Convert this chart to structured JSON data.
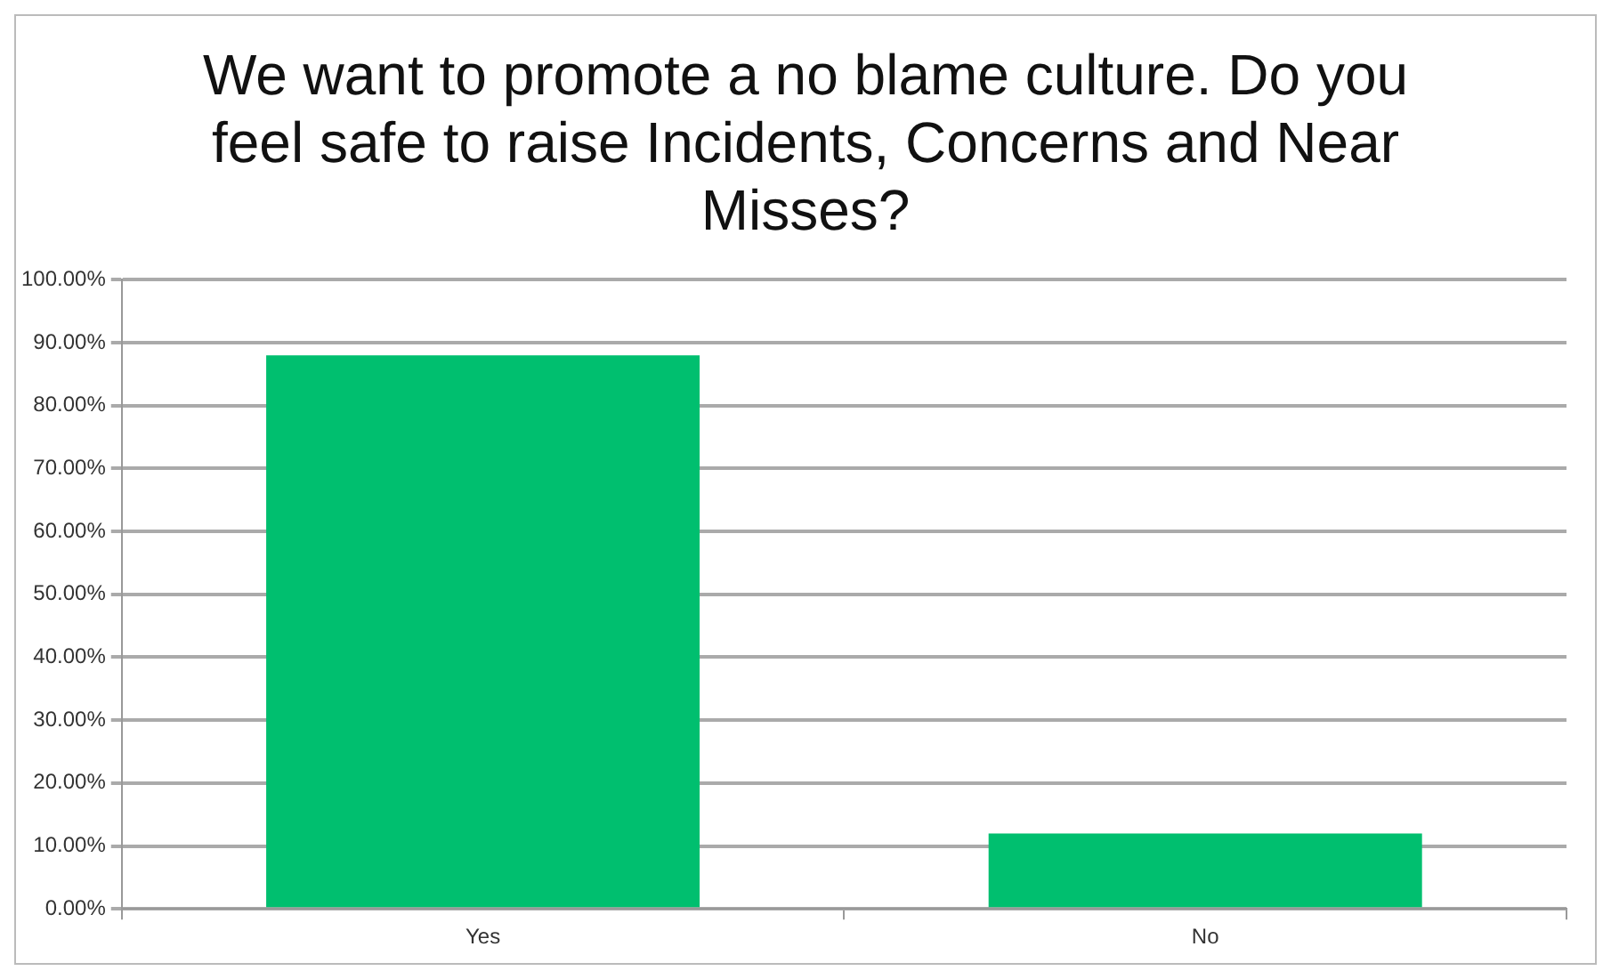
{
  "chart_data": {
    "type": "bar",
    "title": "We want to promote a no blame culture. Do you feel safe to raise Incidents, Concerns and Near Misses?",
    "categories": [
      "Yes",
      "No"
    ],
    "values": [
      88,
      12
    ],
    "color": "#00bf6f",
    "ylim": [
      0,
      100
    ],
    "yticks": [
      {
        "value": 0,
        "label": "0.00%"
      },
      {
        "value": 10,
        "label": "10.00%"
      },
      {
        "value": 20,
        "label": "20.00%"
      },
      {
        "value": 30,
        "label": "30.00%"
      },
      {
        "value": 40,
        "label": "40.00%"
      },
      {
        "value": 50,
        "label": "50.00%"
      },
      {
        "value": 60,
        "label": "60.00%"
      },
      {
        "value": 70,
        "label": "70.00%"
      },
      {
        "value": 80,
        "label": "80.00%"
      },
      {
        "value": 90,
        "label": "90.00%"
      },
      {
        "value": 100,
        "label": "100.00%"
      }
    ],
    "grid": "y",
    "legend": false
  }
}
